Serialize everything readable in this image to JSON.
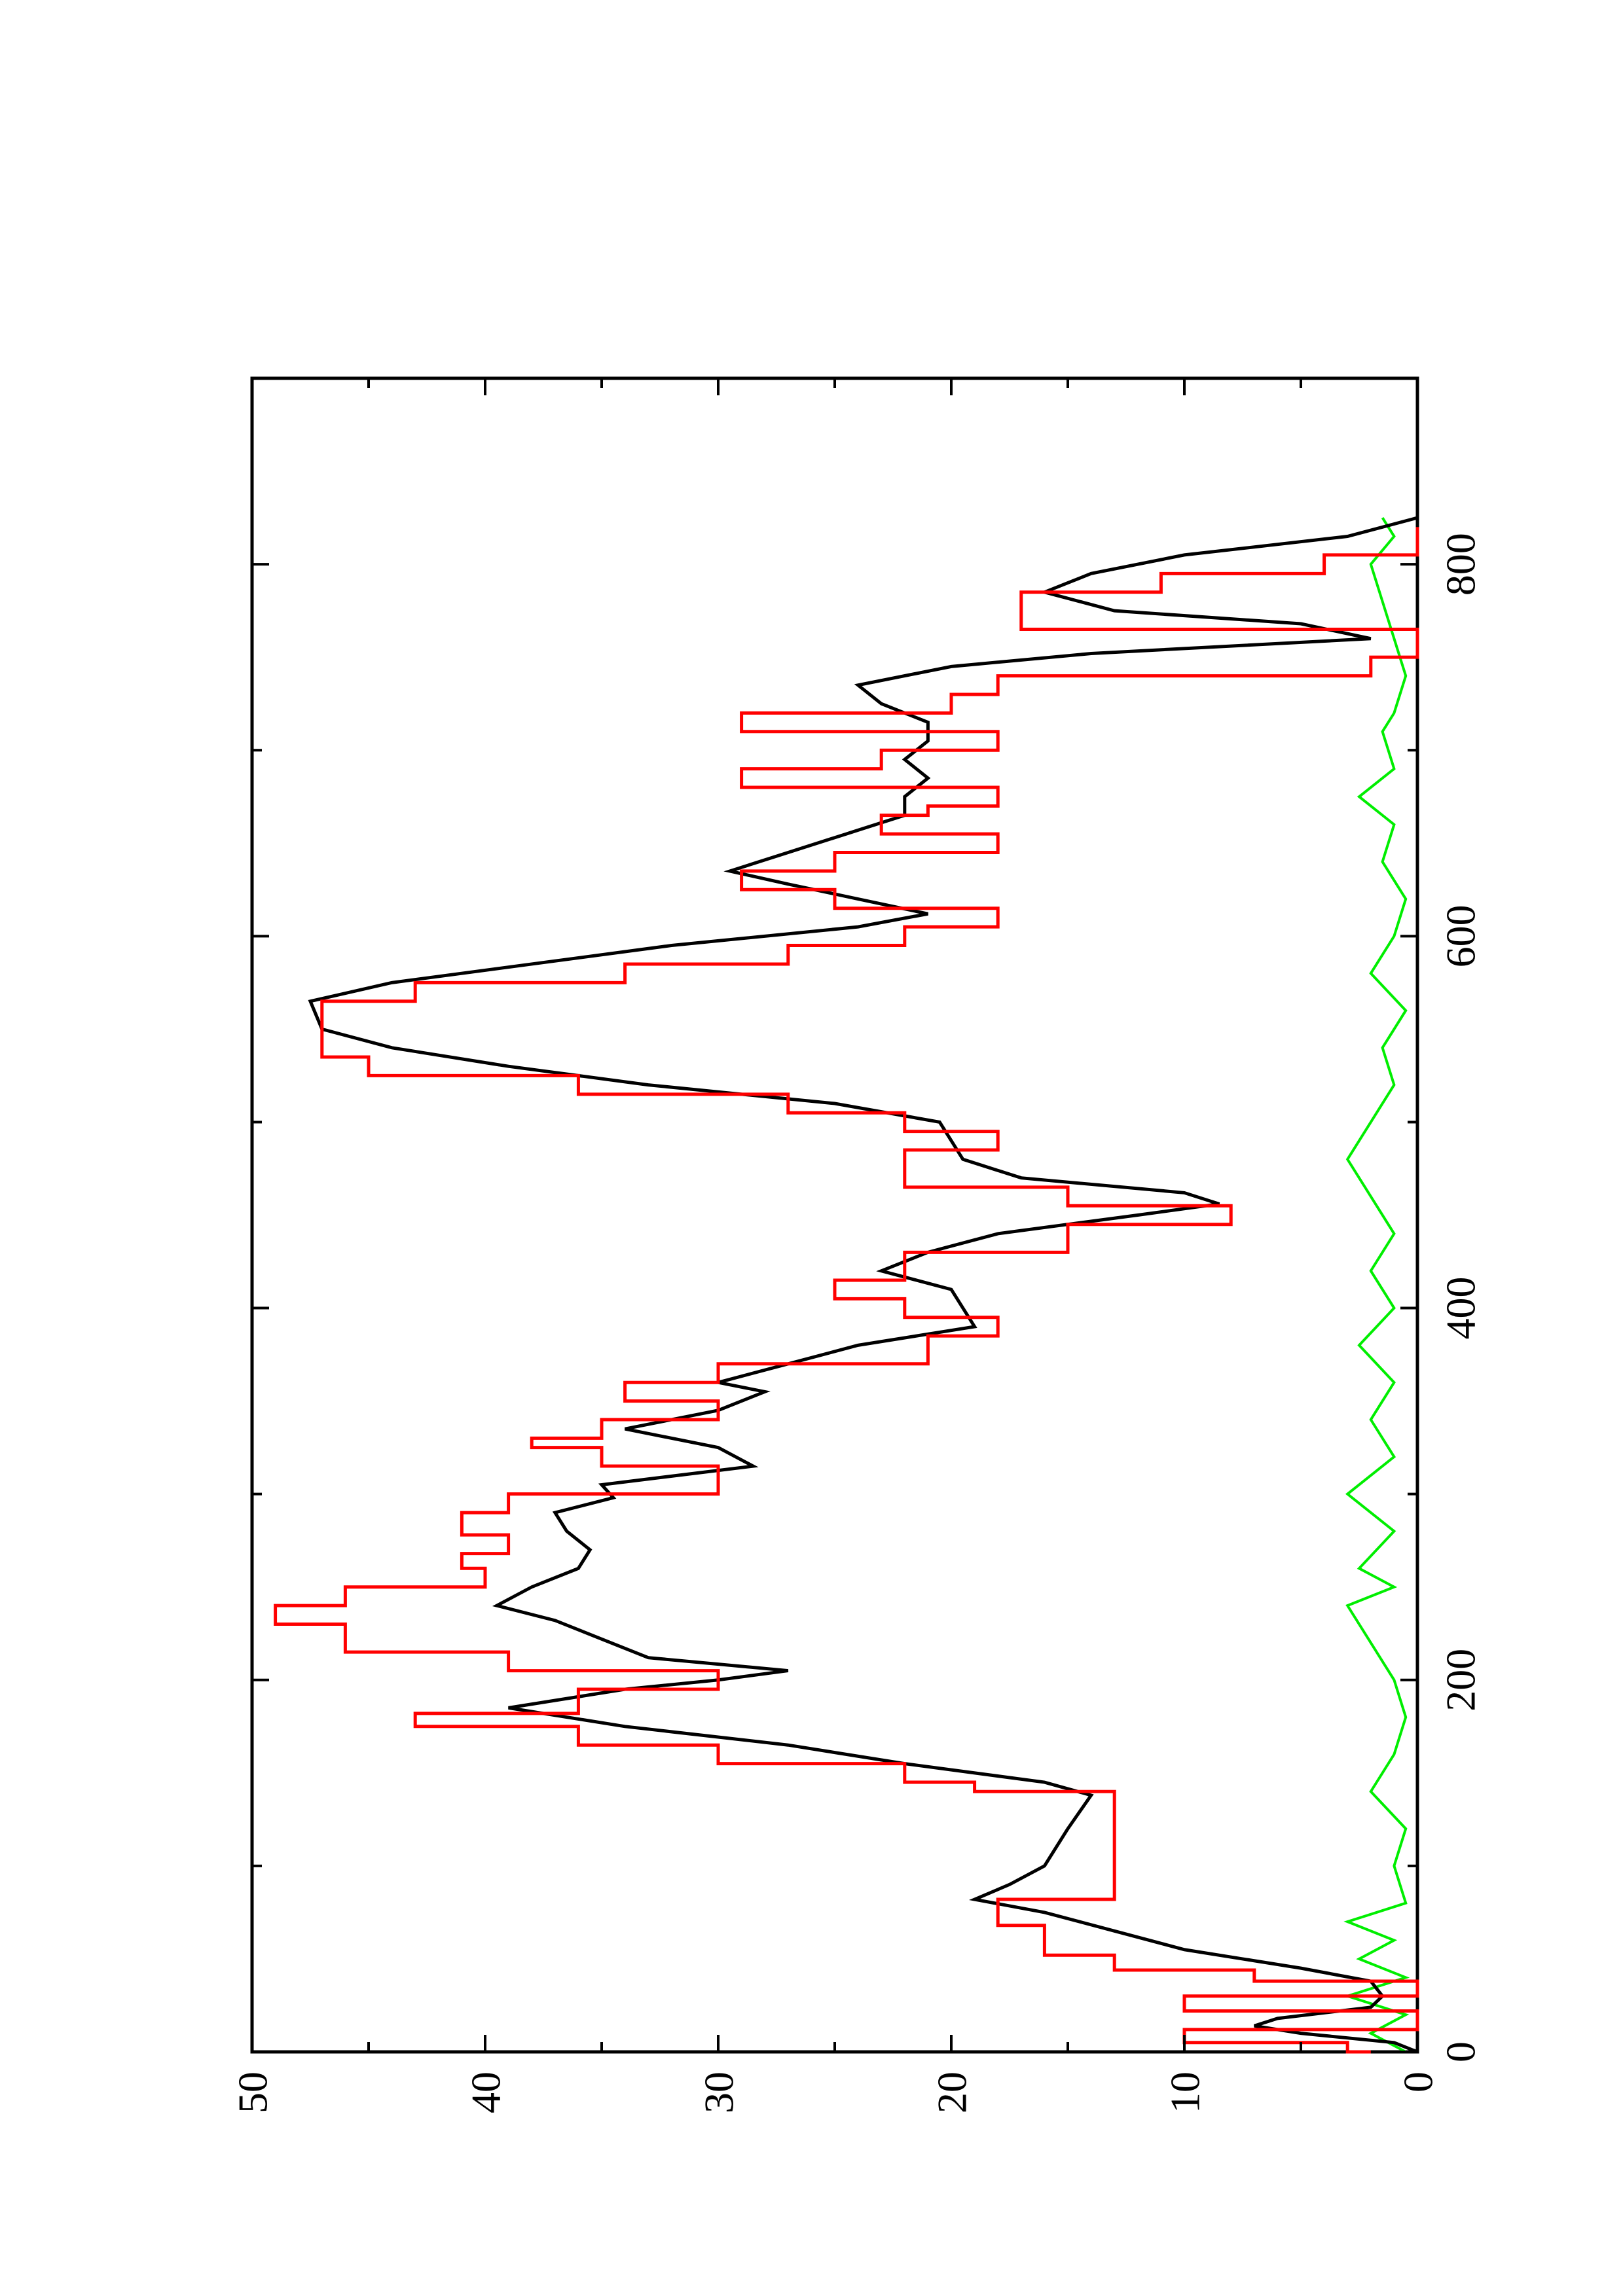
{
  "chart_data": {
    "type": "line",
    "orientation": "rotated 90° counter-clockwise (x axis runs bottom-to-top on the page)",
    "xlim": [
      0,
      900
    ],
    "ylim": [
      0,
      50
    ],
    "x_ticks": [
      0,
      200,
      400,
      600,
      800
    ],
    "x_tick_labels": [
      "0",
      "200",
      "400",
      "600",
      "800"
    ],
    "y_ticks": [
      0,
      10,
      20,
      30,
      40,
      50
    ],
    "y_tick_labels": [
      "0",
      "10",
      "20",
      "30",
      "40",
      "50"
    ],
    "grid": false,
    "legend": "none",
    "series": [
      {
        "color": "#ff0000",
        "style": "step",
        "points": [
          [
            0,
            2
          ],
          [
            5,
            3
          ],
          [
            8,
            10
          ],
          [
            12,
            10
          ],
          [
            22,
            0
          ],
          [
            30,
            10
          ],
          [
            38,
            0
          ],
          [
            44,
            7
          ],
          [
            52,
            13
          ],
          [
            68,
            16
          ],
          [
            82,
            18
          ],
          [
            90,
            13
          ],
          [
            140,
            13
          ],
          [
            145,
            19
          ],
          [
            155,
            22
          ],
          [
            165,
            30
          ],
          [
            175,
            36
          ],
          [
            182,
            43
          ],
          [
            195,
            36
          ],
          [
            205,
            30
          ],
          [
            215,
            39
          ],
          [
            230,
            46
          ],
          [
            240,
            49
          ],
          [
            250,
            46
          ],
          [
            260,
            40
          ],
          [
            268,
            41
          ],
          [
            278,
            39
          ],
          [
            290,
            41
          ],
          [
            300,
            39
          ],
          [
            315,
            30
          ],
          [
            325,
            35
          ],
          [
            330,
            38
          ],
          [
            340,
            35
          ],
          [
            350,
            30
          ],
          [
            360,
            34
          ],
          [
            370,
            30
          ],
          [
            385,
            21
          ],
          [
            395,
            18
          ],
          [
            405,
            22
          ],
          [
            415,
            25
          ],
          [
            430,
            22
          ],
          [
            445,
            15
          ],
          [
            455,
            8
          ],
          [
            465,
            15
          ],
          [
            475,
            22
          ],
          [
            485,
            22
          ],
          [
            495,
            18
          ],
          [
            505,
            22
          ],
          [
            515,
            27
          ],
          [
            525,
            36
          ],
          [
            535,
            45
          ],
          [
            545,
            47
          ],
          [
            565,
            47
          ],
          [
            575,
            43
          ],
          [
            585,
            34
          ],
          [
            595,
            27
          ],
          [
            605,
            22
          ],
          [
            615,
            18
          ],
          [
            625,
            25
          ],
          [
            635,
            29
          ],
          [
            645,
            25
          ],
          [
            655,
            18
          ],
          [
            665,
            23
          ],
          [
            670,
            21
          ],
          [
            680,
            18
          ],
          [
            690,
            29
          ],
          [
            700,
            23
          ],
          [
            710,
            18
          ],
          [
            720,
            29
          ],
          [
            730,
            20
          ],
          [
            740,
            18
          ],
          [
            750,
            2
          ],
          [
            765,
            0
          ],
          [
            770,
            17
          ],
          [
            785,
            17
          ],
          [
            795,
            11
          ],
          [
            805,
            4
          ],
          [
            815,
            0
          ],
          [
            820,
            0
          ]
        ]
      },
      {
        "color": "#000000",
        "style": "line",
        "points": [
          [
            0,
            0
          ],
          [
            5,
            1
          ],
          [
            10,
            5
          ],
          [
            14,
            7
          ],
          [
            18,
            6
          ],
          [
            24,
            2
          ],
          [
            30,
            1.5
          ],
          [
            38,
            2
          ],
          [
            45,
            5
          ],
          [
            55,
            10
          ],
          [
            65,
            13
          ],
          [
            75,
            16
          ],
          [
            82,
            19
          ],
          [
            90,
            17.5
          ],
          [
            100,
            16
          ],
          [
            120,
            15
          ],
          [
            138,
            14
          ],
          [
            145,
            16
          ],
          [
            155,
            22
          ],
          [
            165,
            27
          ],
          [
            175,
            34
          ],
          [
            185,
            39
          ],
          [
            195,
            34
          ],
          [
            200,
            30
          ],
          [
            205,
            27
          ],
          [
            212,
            33
          ],
          [
            222,
            35
          ],
          [
            232,
            37
          ],
          [
            240,
            39.5
          ],
          [
            250,
            38
          ],
          [
            260,
            36
          ],
          [
            270,
            35.5
          ],
          [
            280,
            36.5
          ],
          [
            290,
            37
          ],
          [
            298,
            34.5
          ],
          [
            305,
            35
          ],
          [
            315,
            28.5
          ],
          [
            325,
            30
          ],
          [
            335,
            34
          ],
          [
            345,
            30
          ],
          [
            355,
            28
          ],
          [
            360,
            30
          ],
          [
            370,
            27
          ],
          [
            380,
            24
          ],
          [
            390,
            19
          ],
          [
            400,
            19.5
          ],
          [
            410,
            20
          ],
          [
            420,
            23
          ],
          [
            430,
            21
          ],
          [
            440,
            18
          ],
          [
            450,
            12
          ],
          [
            456,
            8.5
          ],
          [
            462,
            10
          ],
          [
            470,
            17
          ],
          [
            480,
            19.5
          ],
          [
            490,
            20
          ],
          [
            500,
            20.5
          ],
          [
            510,
            25
          ],
          [
            520,
            33
          ],
          [
            530,
            39
          ],
          [
            540,
            44
          ],
          [
            550,
            47
          ],
          [
            565,
            47.5
          ],
          [
            575,
            44
          ],
          [
            585,
            38
          ],
          [
            595,
            32
          ],
          [
            605,
            24
          ],
          [
            612,
            21
          ],
          [
            620,
            24
          ],
          [
            628,
            27
          ],
          [
            635,
            29.5
          ],
          [
            645,
            27
          ],
          [
            655,
            24.5
          ],
          [
            665,
            22
          ],
          [
            675,
            22
          ],
          [
            685,
            21
          ],
          [
            695,
            22
          ],
          [
            705,
            21
          ],
          [
            715,
            21
          ],
          [
            725,
            23
          ],
          [
            735,
            24
          ],
          [
            745,
            20
          ],
          [
            752,
            14
          ],
          [
            760,
            2
          ],
          [
            768,
            5
          ],
          [
            775,
            13
          ],
          [
            785,
            16
          ],
          [
            795,
            14
          ],
          [
            805,
            10
          ],
          [
            815,
            3
          ],
          [
            825,
            0
          ]
        ]
      },
      {
        "color": "#00ee00",
        "style": "noisy line (sampled)",
        "points": [
          [
            0,
            0.5
          ],
          [
            10,
            2
          ],
          [
            20,
            0.5
          ],
          [
            30,
            3
          ],
          [
            40,
            0.5
          ],
          [
            50,
            2.5
          ],
          [
            60,
            1
          ],
          [
            70,
            3
          ],
          [
            80,
            0.5
          ],
          [
            100,
            1
          ],
          [
            120,
            0.5
          ],
          [
            140,
            2
          ],
          [
            160,
            1
          ],
          [
            180,
            0.5
          ],
          [
            200,
            1
          ],
          [
            220,
            2
          ],
          [
            240,
            3
          ],
          [
            250,
            1
          ],
          [
            260,
            2.5
          ],
          [
            280,
            1
          ],
          [
            300,
            3
          ],
          [
            320,
            1
          ],
          [
            340,
            2
          ],
          [
            360,
            1
          ],
          [
            380,
            2.5
          ],
          [
            400,
            1
          ],
          [
            420,
            2
          ],
          [
            440,
            1
          ],
          [
            460,
            2
          ],
          [
            480,
            3
          ],
          [
            500,
            2
          ],
          [
            520,
            1
          ],
          [
            540,
            1.5
          ],
          [
            560,
            0.5
          ],
          [
            580,
            2
          ],
          [
            600,
            1
          ],
          [
            620,
            0.5
          ],
          [
            640,
            1.5
          ],
          [
            660,
            1
          ],
          [
            675,
            2.5
          ],
          [
            690,
            1
          ],
          [
            710,
            1.5
          ],
          [
            720,
            1
          ],
          [
            740,
            0.5
          ],
          [
            760,
            1
          ],
          [
            780,
            1.5
          ],
          [
            800,
            2
          ],
          [
            815,
            1
          ],
          [
            825,
            1.5
          ]
        ]
      }
    ]
  }
}
